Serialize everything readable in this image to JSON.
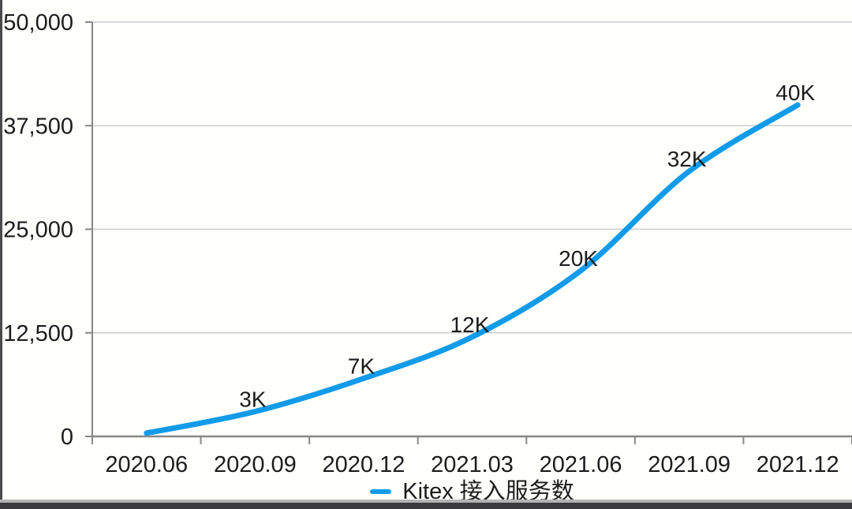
{
  "colors": {
    "line": "#129be8",
    "grid": "#cccccc",
    "axis": "#888888",
    "text": "#1c1c1c",
    "background": "#fffffc"
  },
  "chart_data": {
    "type": "line",
    "title": "",
    "categories": [
      "2020.06",
      "2020.09",
      "2020.12",
      "2021.03",
      "2021.06",
      "2021.09",
      "2021.12"
    ],
    "series": [
      {
        "name": "Kitex 接入服务数",
        "values": [
          400,
          3000,
          7000,
          12000,
          20000,
          32000,
          40000
        ],
        "point_labels": [
          "",
          "3K",
          "7K",
          "12K",
          "20K",
          "32K",
          "40K"
        ]
      }
    ],
    "ylim": [
      0,
      50000
    ],
    "y_ticks": [
      0,
      12500,
      25000,
      37500,
      50000
    ],
    "y_tick_labels": [
      "0",
      "12,500",
      "25,000",
      "37,500",
      "50,000"
    ],
    "xlabel": "",
    "ylabel": "",
    "grid": true,
    "legend": "Kitex 接入服务数",
    "legend_position": "bottom"
  }
}
